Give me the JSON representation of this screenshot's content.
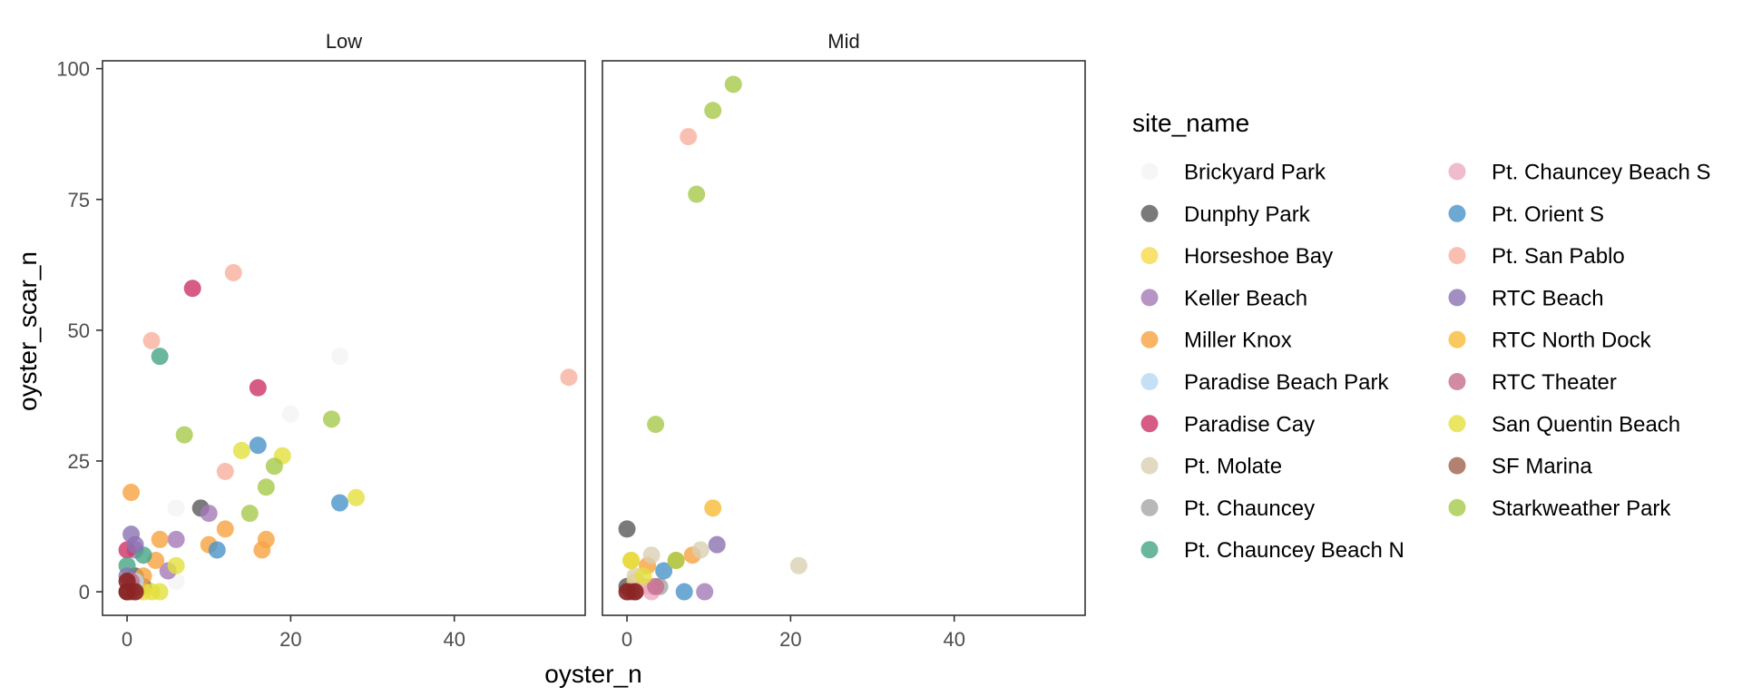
{
  "chart_data": {
    "type": "scatter",
    "facets": [
      "Low",
      "Mid"
    ],
    "xlabel": "oyster_n",
    "ylabel": "oyster_scar_n",
    "xlim": [
      -3,
      56
    ],
    "ylim": [
      -4.5,
      101.5
    ],
    "x_ticks": [
      0,
      20,
      40
    ],
    "y_ticks": [
      0,
      25,
      50,
      75,
      100
    ],
    "grid": false,
    "legend": {
      "title": "site_name",
      "position": "right",
      "columns": 2
    },
    "series": [
      {
        "name": "Brickyard Park",
        "color": "#f3f4f3",
        "points": {
          "Low": [
            [
              6,
              16
            ],
            [
              20,
              34
            ],
            [
              26,
              45
            ],
            [
              6,
              2
            ]
          ],
          "Mid": []
        }
      },
      {
        "name": "Dunphy Park",
        "color": "#595959",
        "points": {
          "Low": [
            [
              9,
              16
            ],
            [
              1,
              3
            ],
            [
              2,
              1
            ],
            [
              0,
              0
            ]
          ],
          "Mid": [
            [
              0,
              12
            ],
            [
              0,
              1
            ]
          ]
        }
      },
      {
        "name": "Horseshoe Bay",
        "color": "#f8d94a",
        "points": {
          "Low": [
            [
              2,
              0
            ]
          ],
          "Mid": [
            [
              1,
              2
            ]
          ]
        }
      },
      {
        "name": "Keller Beach",
        "color": "#a47ab8",
        "points": {
          "Low": [
            [
              10,
              15
            ],
            [
              6,
              10
            ],
            [
              5,
              4
            ],
            [
              1,
              8
            ]
          ],
          "Mid": [
            [
              9.5,
              0
            ]
          ]
        }
      },
      {
        "name": "Miller Knox",
        "color": "#f7a240",
        "points": {
          "Low": [
            [
              0.5,
              19
            ],
            [
              12,
              12
            ],
            [
              17,
              10
            ],
            [
              16.5,
              8
            ],
            [
              10,
              9
            ],
            [
              4,
              10
            ],
            [
              3.5,
              6
            ],
            [
              2,
              3
            ]
          ],
          "Mid": [
            [
              8,
              7
            ],
            [
              2.5,
              5
            ]
          ]
        }
      },
      {
        "name": "Paradise Beach Park",
        "color": "#b7d8f2",
        "points": {
          "Low": [
            [
              1,
              2
            ]
          ],
          "Mid": []
        }
      },
      {
        "name": "Paradise Cay",
        "color": "#cc3366",
        "points": {
          "Low": [
            [
              8,
              58
            ],
            [
              16,
              39
            ],
            [
              0,
              8
            ]
          ],
          "Mid": []
        }
      },
      {
        "name": "Pt.  Molate",
        "color": "#d9cfb3",
        "points": {
          "Low": [],
          "Mid": [
            [
              21,
              5
            ],
            [
              9,
              8
            ],
            [
              3,
              7
            ],
            [
              1,
              3
            ],
            [
              3,
              1
            ]
          ]
        }
      },
      {
        "name": "Pt. Chauncey",
        "color": "#a6a6a6",
        "points": {
          "Low": [
            [
              0.5,
              1
            ]
          ],
          "Mid": [
            [
              1,
              0
            ],
            [
              4,
              1
            ]
          ]
        }
      },
      {
        "name": "Pt. Chauncey Beach N",
        "color": "#45a586",
        "points": {
          "Low": [
            [
              4,
              45
            ],
            [
              2,
              7
            ],
            [
              0,
              5
            ]
          ],
          "Mid": []
        }
      },
      {
        "name": "Pt. Chauncey Beach S",
        "color": "#eeaac3",
        "points": {
          "Low": [],
          "Mid": [
            [
              3,
              0
            ],
            [
              2,
              1
            ]
          ]
        }
      },
      {
        "name": "Pt. Orient S",
        "color": "#4a94c9",
        "points": {
          "Low": [
            [
              16,
              28
            ],
            [
              26,
              17
            ],
            [
              11,
              8
            ]
          ],
          "Mid": [
            [
              7,
              0
            ],
            [
              4.5,
              4
            ]
          ]
        }
      },
      {
        "name": "Pt. San Pablo",
        "color": "#f7b09e",
        "points": {
          "Low": [
            [
              13,
              61
            ],
            [
              3,
              48
            ],
            [
              54,
              41
            ],
            [
              12,
              23
            ]
          ],
          "Mid": [
            [
              7.5,
              87
            ]
          ]
        }
      },
      {
        "name": "RTC Beach",
        "color": "#8c72b3",
        "points": {
          "Low": [
            [
              0.5,
              11
            ],
            [
              1,
              9
            ],
            [
              0,
              3
            ]
          ],
          "Mid": [
            [
              11,
              9
            ]
          ]
        }
      },
      {
        "name": "RTC North Dock",
        "color": "#f7bb37",
        "points": {
          "Low": [],
          "Mid": [
            [
              10.5,
              16
            ],
            [
              0.5,
              6
            ],
            [
              6,
              6
            ]
          ]
        }
      },
      {
        "name": "RTC Theater",
        "color": "#c46e8f",
        "points": {
          "Low": [
            [
              0.5,
              2
            ]
          ],
          "Mid": [
            [
              3.5,
              1
            ]
          ]
        }
      },
      {
        "name": "San Quentin Beach",
        "color": "#e4e03d",
        "points": {
          "Low": [
            [
              14,
              27
            ],
            [
              19,
              26
            ],
            [
              28,
              18
            ],
            [
              6,
              5
            ],
            [
              4,
              0
            ],
            [
              3,
              0
            ]
          ],
          "Mid": [
            [
              0.5,
              6
            ],
            [
              2,
              3
            ]
          ]
        }
      },
      {
        "name": "SF Marina",
        "color": "#a0614d",
        "points": {
          "Low": [
            [
              0.5,
              0
            ]
          ],
          "Mid": [
            [
              0.5,
              0
            ]
          ]
        }
      },
      {
        "name": "Starkweather Park",
        "color": "#a6c94a",
        "points": {
          "Low": [
            [
              7,
              30
            ],
            [
              25,
              33
            ],
            [
              18,
              24
            ],
            [
              17,
              20
            ],
            [
              15,
              15
            ]
          ],
          "Mid": [
            [
              13,
              97
            ],
            [
              10.5,
              92
            ],
            [
              8.5,
              76
            ],
            [
              3.5,
              32
            ],
            [
              6,
              6
            ]
          ]
        }
      }
    ],
    "overlay_points": {
      "color": "#8b2323",
      "points": {
        "Low": [
          [
            0,
            0
          ],
          [
            1,
            0
          ],
          [
            0,
            2
          ]
        ],
        "Mid": [
          [
            0,
            0
          ],
          [
            1,
            0
          ]
        ]
      }
    }
  }
}
